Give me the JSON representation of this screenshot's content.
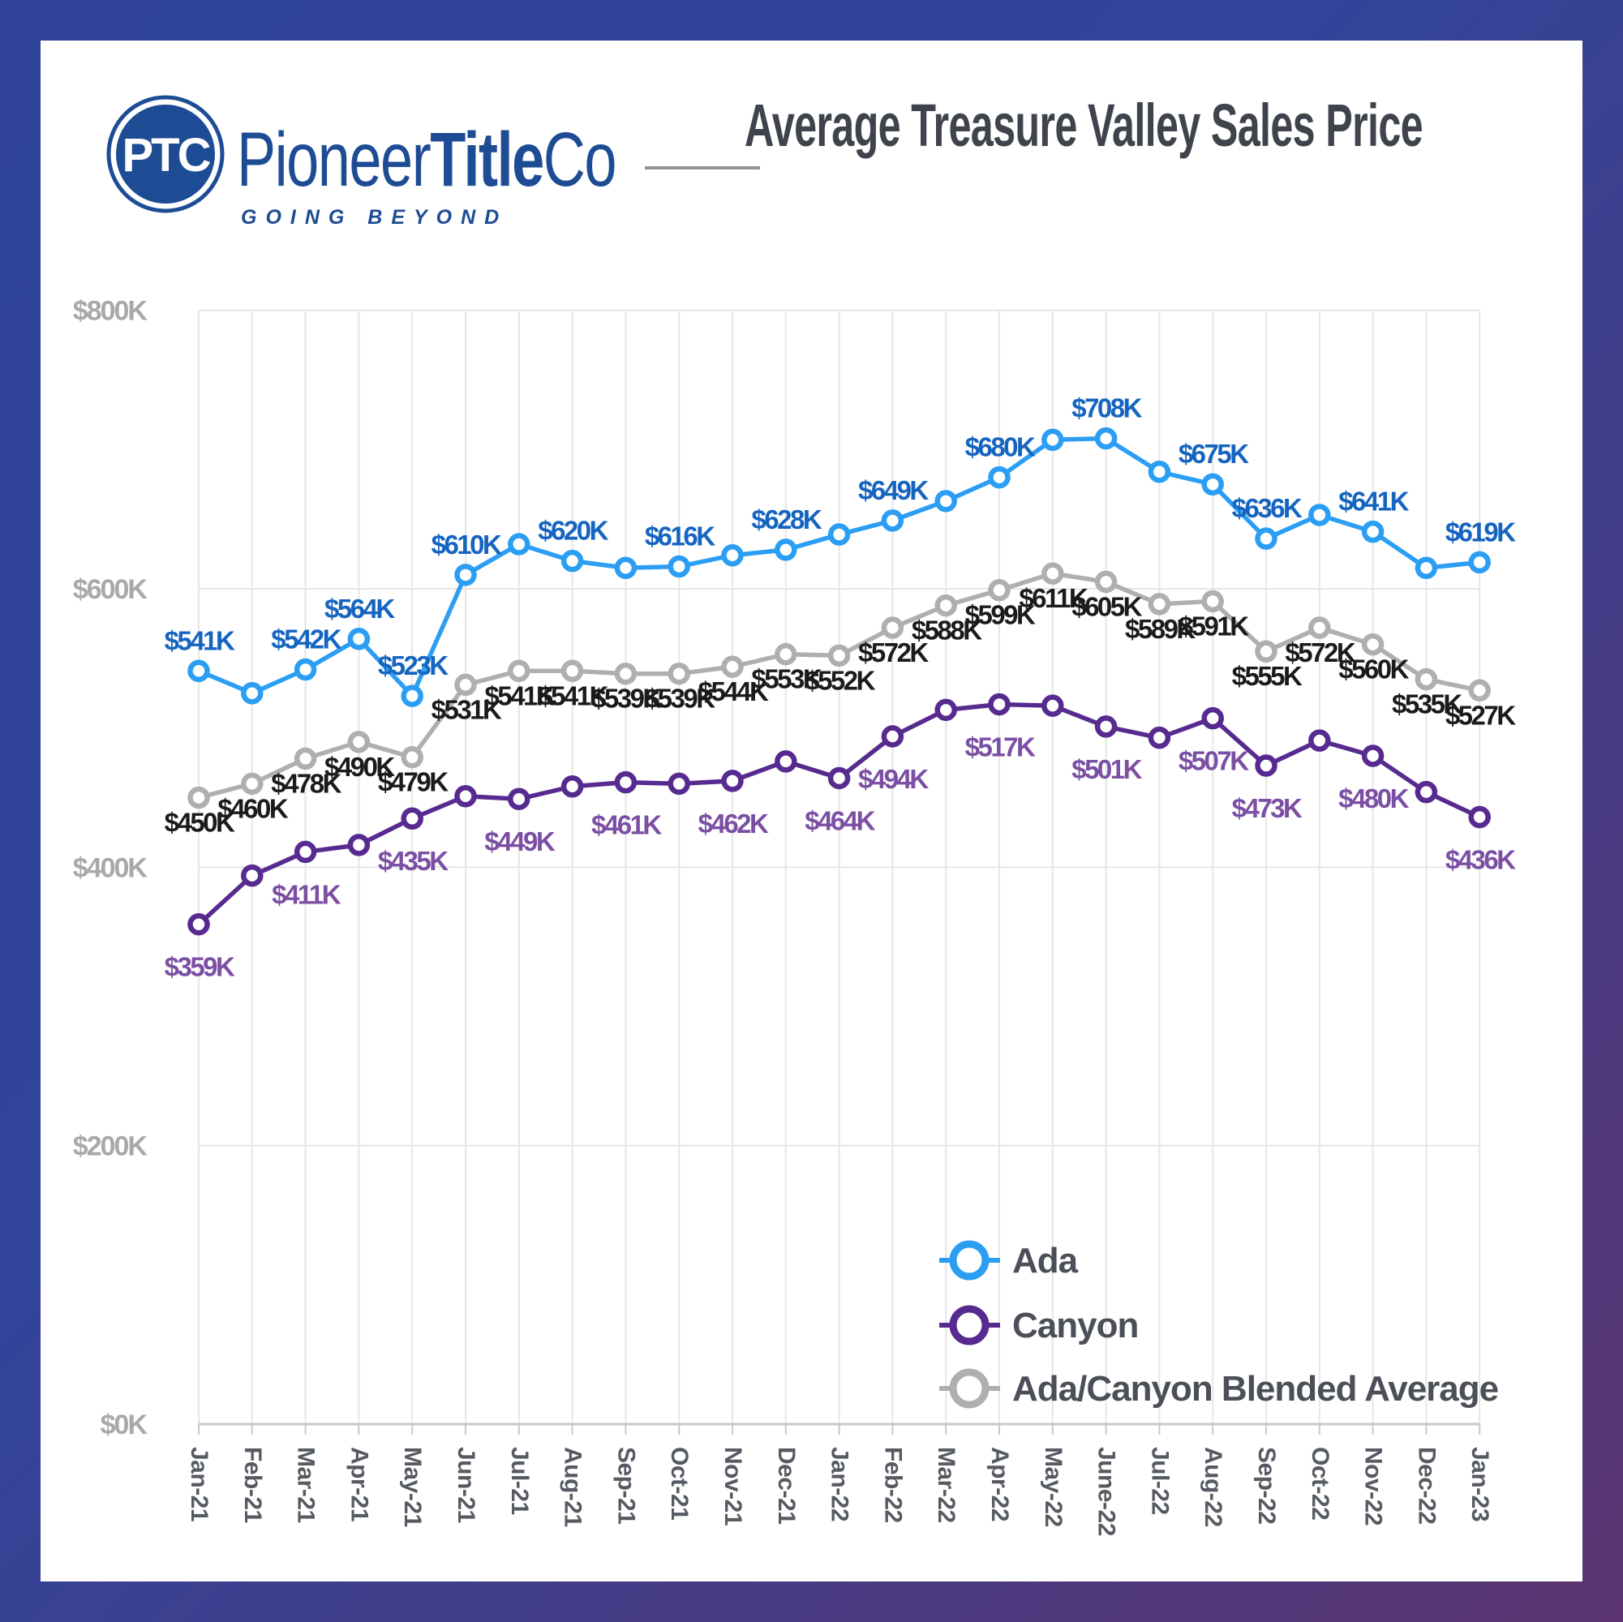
{
  "header": {
    "logo": {
      "monogram": "PTC",
      "brand_regular": "Pioneer",
      "brand_bold": "Title",
      "brand_suffix": "Co",
      "tagline": "GOING BEYOND",
      "brand_color": "#1E4C94"
    },
    "title": "Average Treasure Valley Sales Price"
  },
  "chart_data": {
    "type": "line",
    "title": "Average Treasure Valley Sales Price",
    "categories": [
      "Jan-21",
      "Feb-21",
      "Mar-21",
      "Apr-21",
      "May-21",
      "Jun-21",
      "Jul-21",
      "Aug-21",
      "Sep-21",
      "Oct-21",
      "Nov-21",
      "Dec-21",
      "Jan-22",
      "Feb-22",
      "Mar-22",
      "Apr-22",
      "May-22",
      "June-22",
      "Jul-22",
      "Aug-22",
      "Sep-22",
      "Oct-22",
      "Nov-22",
      "Dec-22",
      "Jan-23"
    ],
    "ylim": [
      0,
      800
    ],
    "y_ticks": [
      {
        "label": "$800K",
        "value": 800
      },
      {
        "label": "$600K",
        "value": 600
      },
      {
        "label": "$400K",
        "value": 400
      },
      {
        "label": "$200K",
        "value": 200
      },
      {
        "label": "$0K",
        "value": 0
      }
    ],
    "grid": true,
    "legend_position": "bottom-right",
    "series": [
      {
        "name": "Ada/Canyon Blended Average",
        "line_color": "#AFAFAF",
        "label_color": "#1B1B1B",
        "values": [
          450,
          460,
          478,
          490,
          479,
          531,
          541,
          541,
          539,
          539,
          544,
          553,
          552,
          572,
          588,
          599,
          611,
          605,
          589,
          591,
          555,
          572,
          560,
          535,
          527
        ],
        "point_labels": [
          "$450K",
          "$460K",
          "$478K",
          "$490K",
          "$479K",
          "$531K",
          "$541K",
          "$541K",
          "$539K",
          "$539K",
          "$544K",
          "$553K",
          "$552K",
          "$572K",
          "$588K",
          "$599K",
          "$611K",
          "$605K",
          "$589K",
          "$591K",
          "$555K",
          "$572K",
          "$560K",
          "$535K",
          "$527K"
        ]
      },
      {
        "name": "Canyon",
        "line_color": "#572A8F",
        "label_color": "#7B4FA4",
        "values": [
          359,
          394,
          411,
          416,
          435,
          451,
          449,
          458,
          461,
          460,
          462,
          476,
          464,
          494,
          513,
          517,
          516,
          501,
          493,
          507,
          473,
          491,
          480,
          454,
          436
        ],
        "point_labels": [
          "$359K",
          null,
          "$411K",
          null,
          "$435K",
          null,
          "$449K",
          null,
          "$461K",
          null,
          "$462K",
          null,
          "$464K",
          "$494K",
          null,
          "$517K",
          null,
          "$501K",
          null,
          "$507K",
          "$473K",
          null,
          "$480K",
          null,
          "$436K"
        ]
      },
      {
        "name": "Ada",
        "line_color": "#2B9EF4",
        "label_color": "#1565C0",
        "values": [
          541,
          525,
          542,
          564,
          523,
          610,
          632,
          620,
          615,
          616,
          624,
          628,
          639,
          649,
          663,
          680,
          707,
          708,
          684,
          675,
          636,
          653,
          641,
          615,
          619
        ],
        "point_labels": [
          "$541K",
          null,
          "$542K",
          "$564K",
          "$523K",
          "$610K",
          null,
          "$620K",
          null,
          "$616K",
          null,
          "$628K",
          null,
          "$649K",
          null,
          "$680K",
          null,
          "$708K",
          null,
          "$675K",
          "$636K",
          null,
          "$641K",
          null,
          "$619K"
        ]
      }
    ],
    "legend_order": [
      "Ada",
      "Canyon",
      "Ada/Canyon Blended Average"
    ]
  },
  "colors": {
    "frame_gradient_start": "#2E4397",
    "frame_gradient_end": "#5B3470",
    "y_axis_text": "#A9A9A9",
    "x_axis_text": "#565A62",
    "title_text": "#3F434C",
    "legend_text": "#4B4F57",
    "grid_line": "#E6E6E6",
    "axis_line": "#C9C9C9"
  }
}
